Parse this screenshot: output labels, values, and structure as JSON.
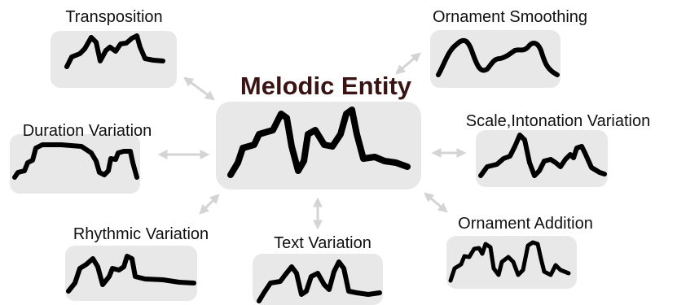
{
  "title": "Melodic Entity",
  "nodes": [
    {
      "label": "Transposition"
    },
    {
      "label": "Ornament Smoothing"
    },
    {
      "label": "Duration Variation"
    },
    {
      "label": "Scale,Intonation Variation"
    },
    {
      "label": "Rhythmic Variation"
    },
    {
      "label": "Text Variation"
    },
    {
      "label": "Ornament Addition"
    }
  ]
}
